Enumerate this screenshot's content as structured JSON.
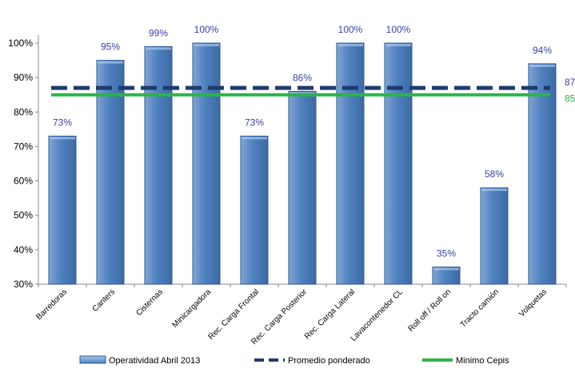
{
  "chart_data": {
    "type": "bar",
    "categories": [
      "Barredoras",
      "Canters",
      "Cisternas",
      "Minicargadora",
      "Rec. Carga Frontal",
      "Rec. Carga Posterior",
      "Rec. Carga Lateral",
      "Lavacontenedor CL",
      "Roll off / Roll on",
      "Tracto camión",
      "Volquetas"
    ],
    "series": [
      {
        "name": "Operatividad Abril 2013",
        "values": [
          73,
          95,
          99,
          100,
          73,
          86,
          100,
          100,
          35,
          58,
          94
        ],
        "labels": [
          "73%",
          "95%",
          "99%",
          "100%",
          "73%",
          "86%",
          "100%",
          "100%",
          "35%",
          "58%",
          "94%"
        ]
      }
    ],
    "lines": [
      {
        "name": "Promedio ponderado",
        "value": 87,
        "label": "87%",
        "style": "dashed",
        "color": "#1f3b6e"
      },
      {
        "name": "Minimo Cepis",
        "value": 85,
        "label": "85%",
        "style": "solid",
        "color": "#2db34a"
      }
    ],
    "yticks": [
      "100%",
      "90%",
      "80%",
      "70%",
      "60%",
      "50%",
      "40%",
      "30%"
    ],
    "ytick_values": [
      100,
      90,
      80,
      70,
      60,
      50,
      40,
      30
    ],
    "ylim": [
      30,
      100
    ],
    "title": "",
    "xlabel": "",
    "ylabel": "",
    "legend_position": "bottom",
    "grid": false,
    "colors": {
      "bar": "#4f81bd",
      "bar_light": "#8db4e2",
      "bar_dark": "#2f5b94",
      "label": "#3d3dae"
    }
  }
}
